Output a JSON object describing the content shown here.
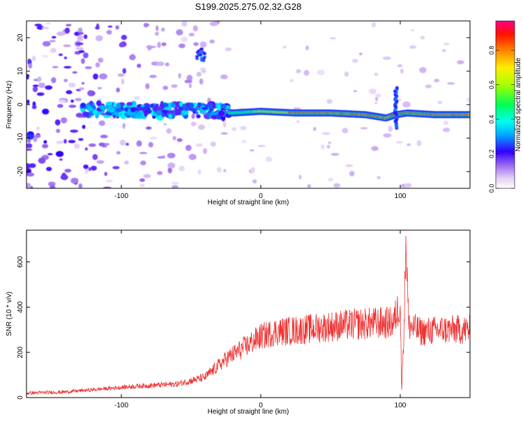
{
  "title": "S199.2025.275.02.32.G28",
  "chart_data": [
    {
      "type": "heatmap",
      "xlabel": "Height of straight line (km)",
      "ylabel": "Frequency (Hz)",
      "xlim": [
        -168,
        150
      ],
      "ylim": [
        -25,
        25
      ],
      "xticks": [
        -100,
        0,
        100
      ],
      "yticks": [
        -20,
        -10,
        0,
        10,
        20
      ],
      "colorbar": {
        "label": "Normalized spectral amplitude",
        "range": [
          0.0,
          0.97
        ],
        "ticks": [
          0.0,
          0.2,
          0.4,
          0.6,
          0.8
        ]
      },
      "ridge": {
        "description_points_x": [
          -125,
          -100,
          -75,
          -50,
          -30,
          -20,
          0,
          25,
          50,
          75,
          90,
          97,
          105,
          125,
          150
        ],
        "description_points_freq": [
          -1.5,
          -1.5,
          -2,
          -1.5,
          -2,
          -2.5,
          -2,
          -2.5,
          -2.5,
          -3,
          -4,
          -3,
          -2.5,
          -3,
          -3
        ],
        "vertical_feature_x": 97,
        "vertical_feature_freq_range": [
          -7,
          5
        ]
      }
    },
    {
      "type": "line",
      "xlabel": "Height of straight line (km)",
      "ylabel": "SNR (10 * v/v)",
      "xlim": [
        -168,
        150
      ],
      "ylim": [
        0,
        740
      ],
      "xticks": [
        -100,
        0,
        100
      ],
      "yticks": [
        0,
        200,
        400,
        600
      ],
      "series": [
        {
          "name": "SNR",
          "color": "#ee3333",
          "x": [
            -168,
            -140,
            -110,
            -90,
            -60,
            -40,
            -25,
            -10,
            0,
            10,
            30,
            50,
            70,
            85,
            95,
            100,
            101,
            103,
            104,
            106,
            115,
            130,
            150
          ],
          "y": [
            20,
            25,
            40,
            50,
            60,
            90,
            170,
            230,
            270,
            290,
            300,
            315,
            325,
            330,
            330,
            420,
            30,
            380,
            730,
            320,
            290,
            300,
            300
          ]
        }
      ]
    }
  ]
}
